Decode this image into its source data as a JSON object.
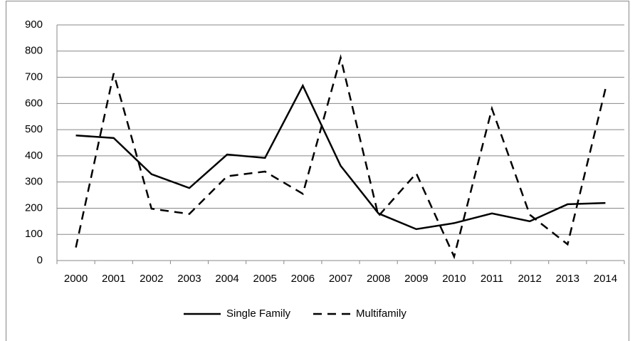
{
  "chart_data": {
    "type": "line",
    "categories": [
      "2000",
      "2001",
      "2002",
      "2003",
      "2004",
      "2005",
      "2006",
      "2007",
      "2008",
      "2009",
      "2010",
      "2011",
      "2012",
      "2013",
      "2014"
    ],
    "series": [
      {
        "name": "Single Family",
        "color": "#000000",
        "dash": "solid",
        "values": [
          478,
          468,
          330,
          277,
          405,
          392,
          668,
          362,
          180,
          120,
          143,
          180,
          150,
          215,
          220
        ]
      },
      {
        "name": "Multifamily",
        "color": "#000000",
        "dash": "dashed",
        "values": [
          50,
          715,
          198,
          178,
          322,
          340,
          255,
          775,
          170,
          333,
          15,
          580,
          175,
          62,
          655
        ]
      }
    ],
    "ylim": [
      0,
      900
    ],
    "yticks": [
      0,
      100,
      200,
      300,
      400,
      500,
      600,
      700,
      800,
      900
    ],
    "grid": true,
    "legend": "bottom"
  }
}
